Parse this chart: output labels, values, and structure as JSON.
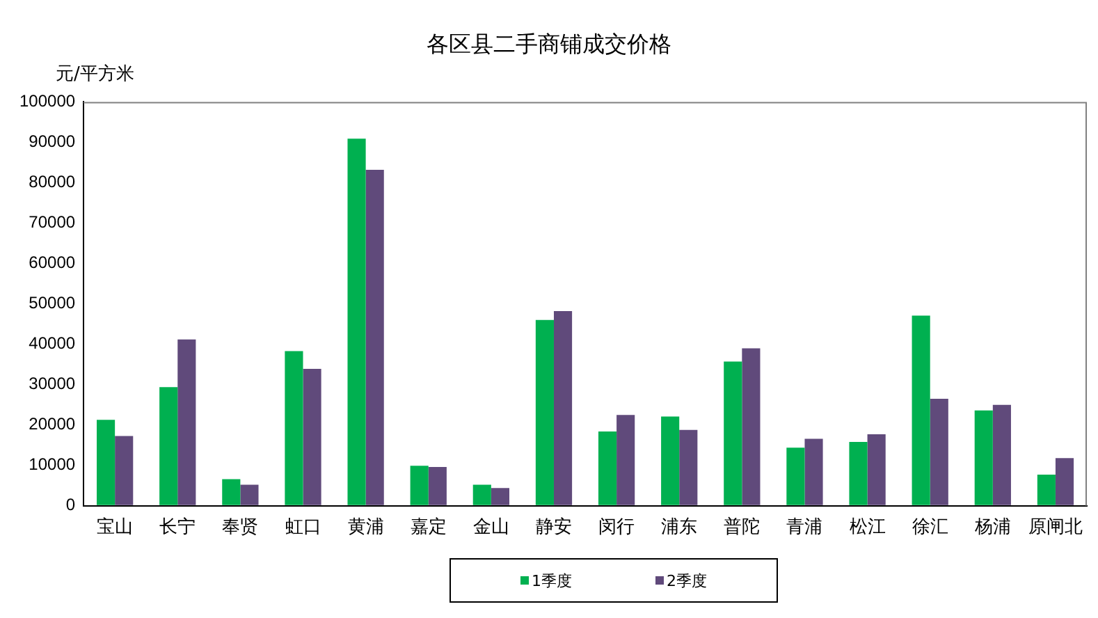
{
  "chart_data": {
    "type": "bar",
    "title": "各区县二手商铺成交价格",
    "ylabel": "元/平方米",
    "categories": [
      "宝山",
      "长宁",
      "奉贤",
      "虹口",
      "黄浦",
      "嘉定",
      "金山",
      "静安",
      "闵行",
      "浦东",
      "普陀",
      "青浦",
      "松江",
      "徐汇",
      "杨浦",
      "原闸北"
    ],
    "series": [
      {
        "name": "1季度",
        "color": "#00b050",
        "values": [
          21300,
          29400,
          6600,
          38300,
          90900,
          9900,
          5200,
          46000,
          18400,
          22100,
          35700,
          14400,
          15800,
          47100,
          23600,
          7700
        ]
      },
      {
        "name": "2季度",
        "color": "#604a7b",
        "values": [
          17300,
          41200,
          5200,
          33900,
          83200,
          9600,
          4400,
          48200,
          22500,
          18800,
          39000,
          16600,
          17700,
          26500,
          25000,
          11800
        ]
      }
    ],
    "ylim": [
      0,
      100000
    ],
    "yticks": [
      0,
      10000,
      20000,
      30000,
      40000,
      50000,
      60000,
      70000,
      80000,
      90000,
      100000
    ],
    "grid": false,
    "legend": "bottom"
  }
}
